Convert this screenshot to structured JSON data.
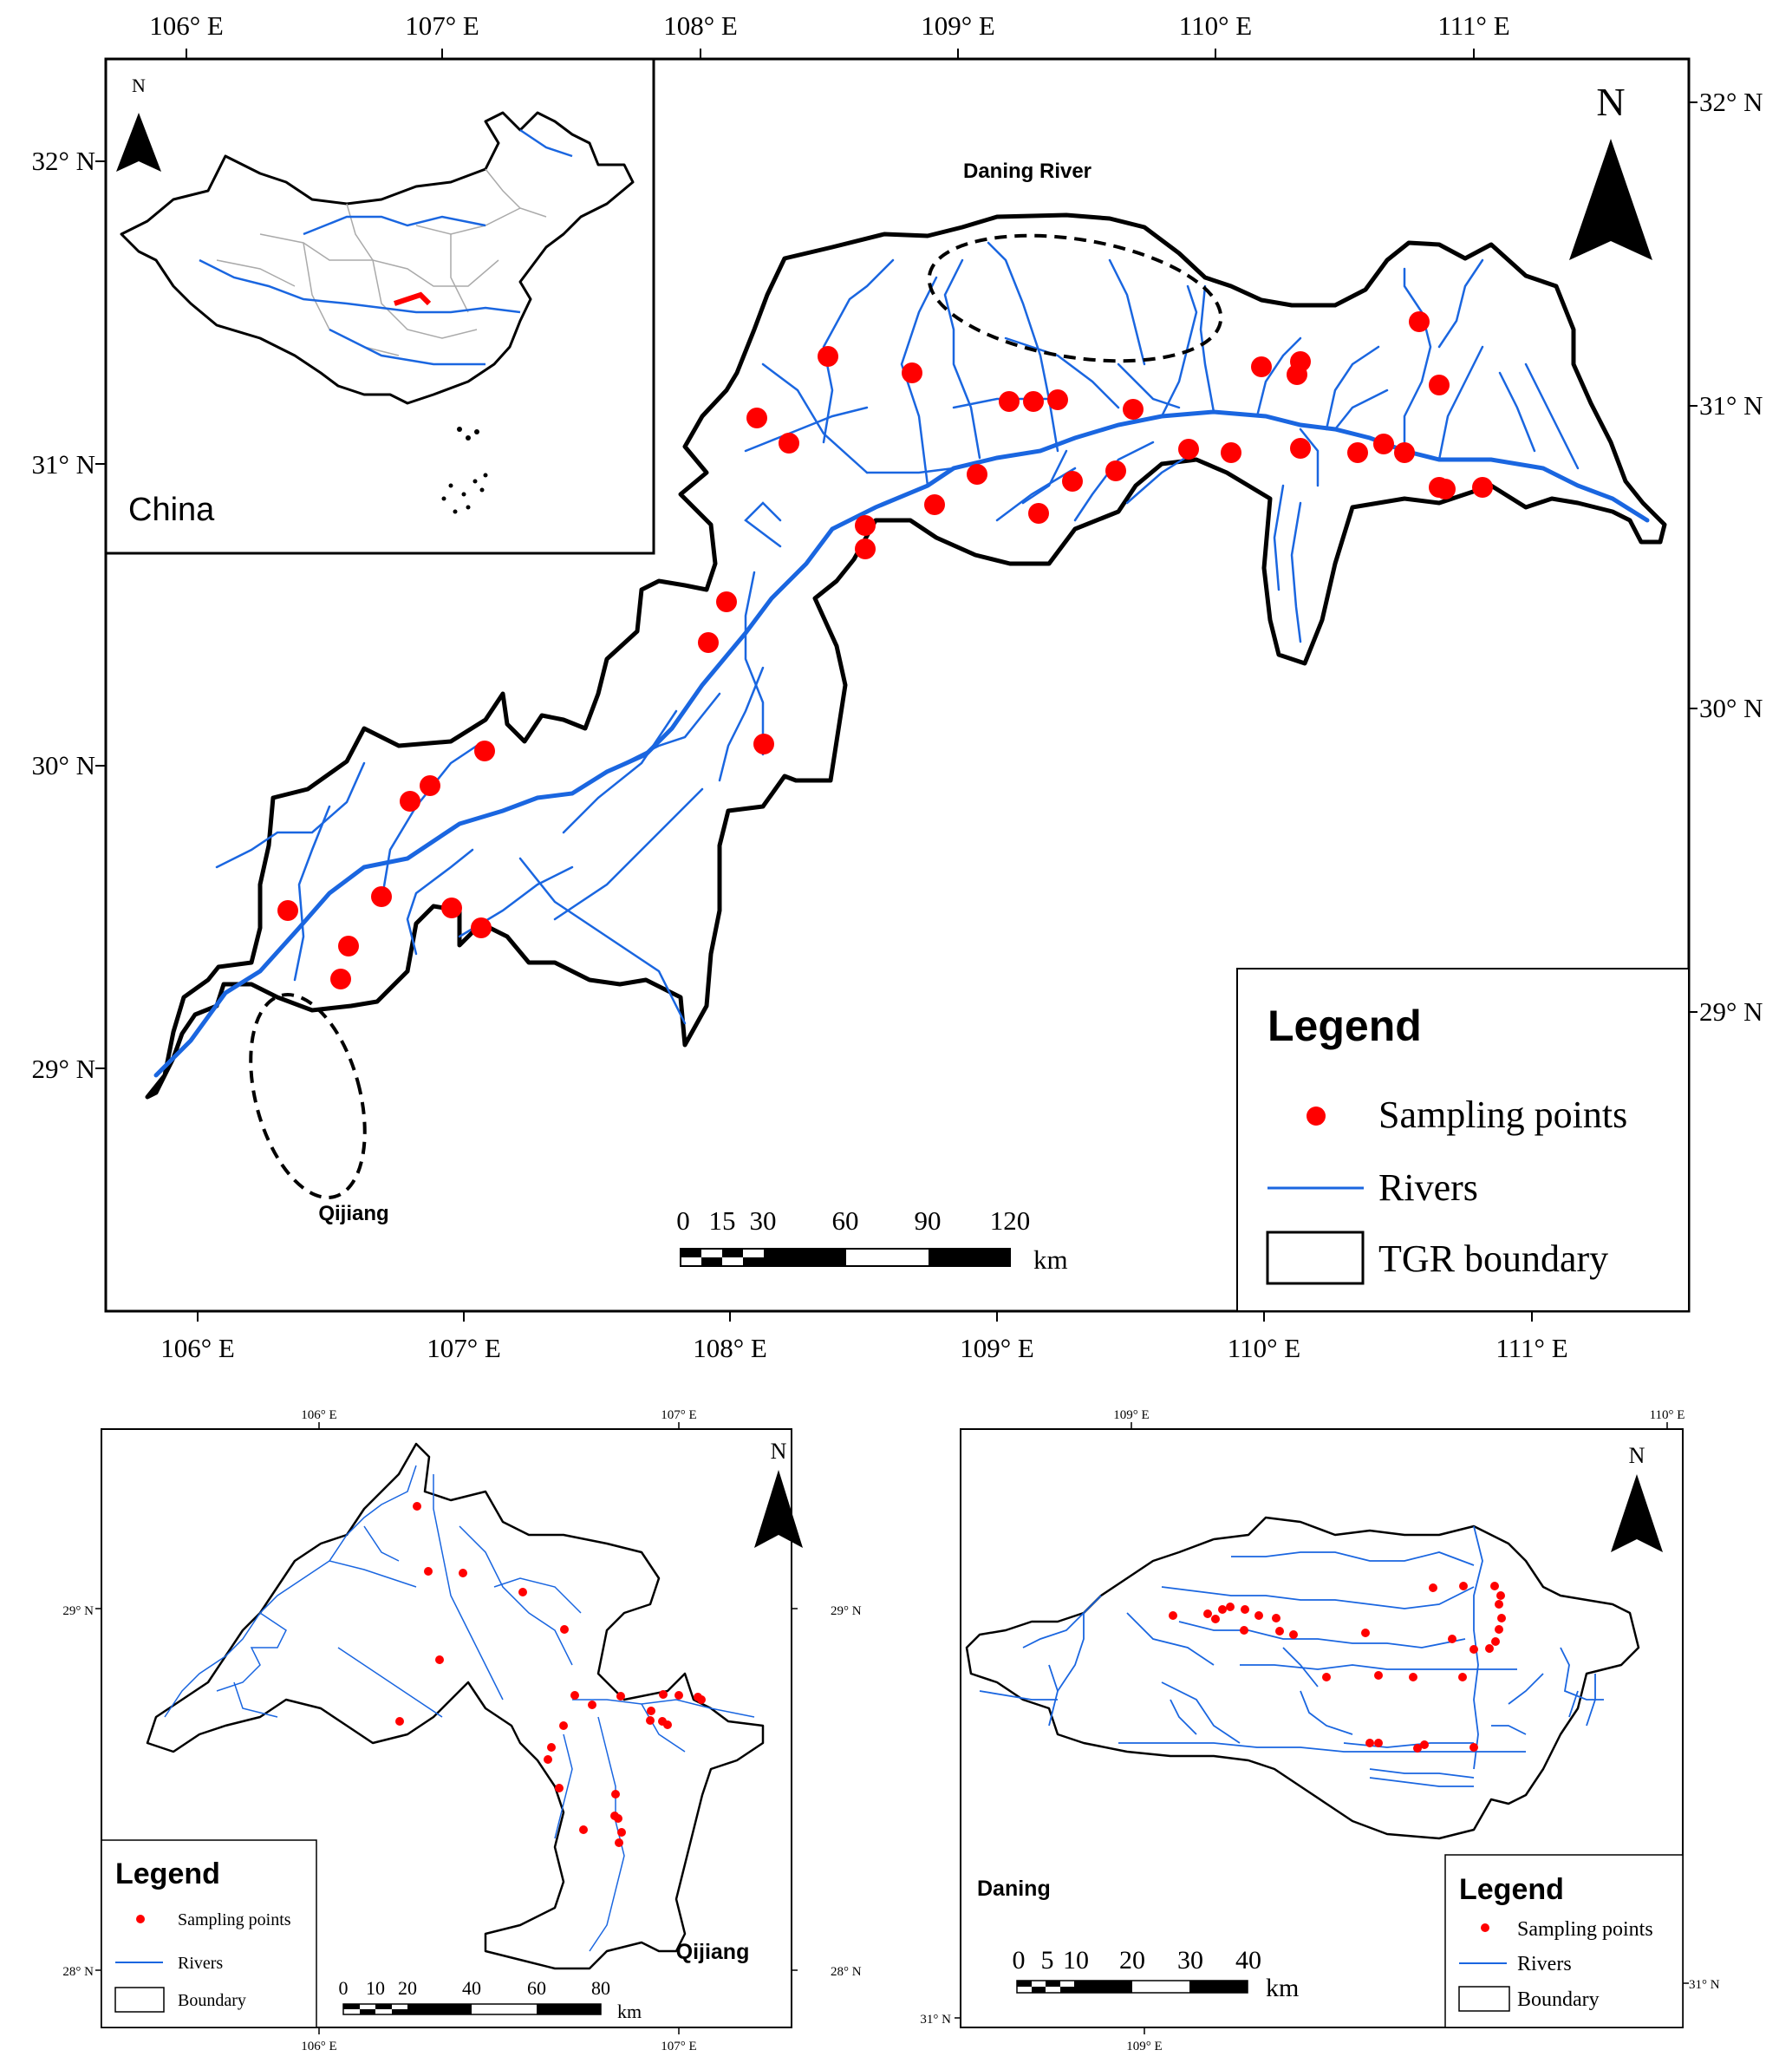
{
  "main_map": {
    "top_lon_labels": [
      "106° E",
      "107° E",
      "108° E",
      "109° E",
      "110° E",
      "111° E"
    ],
    "bottom_lon_labels": [
      "106° E",
      "107° E",
      "108° E",
      "109° E",
      "110° E",
      "111° E"
    ],
    "left_lat_labels": [
      "32° N",
      "31° N",
      "30° N",
      "29° N"
    ],
    "right_lat_labels": [
      "32° N",
      "31° N",
      "30° N",
      "29° N"
    ],
    "north_label": "N",
    "inset": {
      "label": "China",
      "north_label": "N"
    },
    "region_labels": {
      "daning": "Daning River",
      "qijiang": "Qijiang"
    },
    "scale_bar": {
      "ticks": [
        "0",
        "15",
        "30",
        "60",
        "90",
        "120"
      ],
      "unit": "km"
    },
    "legend": {
      "title": "Legend",
      "items": [
        "Sampling points",
        "Rivers",
        "TGR boundary"
      ]
    },
    "colors": {
      "sampling_point": "#ff0000",
      "river": "#1a66e0",
      "boundary": "#000000"
    }
  },
  "qijiang_map": {
    "top_lon_labels": [
      "106° E",
      "107° E"
    ],
    "bottom_lon_labels": [
      "106° E",
      "107° E"
    ],
    "left_lat_labels": [
      "29° N",
      "28° N"
    ],
    "right_lat_labels": [
      "29° N",
      "28° N"
    ],
    "north_label": "N",
    "region_label": "Qijiang",
    "scale_bar": {
      "ticks": [
        "0",
        "10",
        "20",
        "40",
        "60",
        "80"
      ],
      "unit": "km"
    },
    "legend": {
      "title": "Legend",
      "items": [
        "Sampling points",
        "Rivers",
        "Boundary"
      ]
    }
  },
  "daning_map": {
    "top_lon_labels": [
      "109° E",
      "110° E"
    ],
    "bottom_lon_labels": [
      "109° E"
    ],
    "left_lat_labels": [
      "31° N"
    ],
    "right_lat_labels": [
      "31° N"
    ],
    "north_label": "N",
    "region_label": "Daning",
    "scale_bar": {
      "ticks": [
        "0",
        "5",
        "10",
        "20",
        "30",
        "40"
      ],
      "unit": "km"
    },
    "legend": {
      "title": "Legend",
      "items": [
        "Sampling points",
        "Rivers",
        "Boundary"
      ]
    }
  }
}
